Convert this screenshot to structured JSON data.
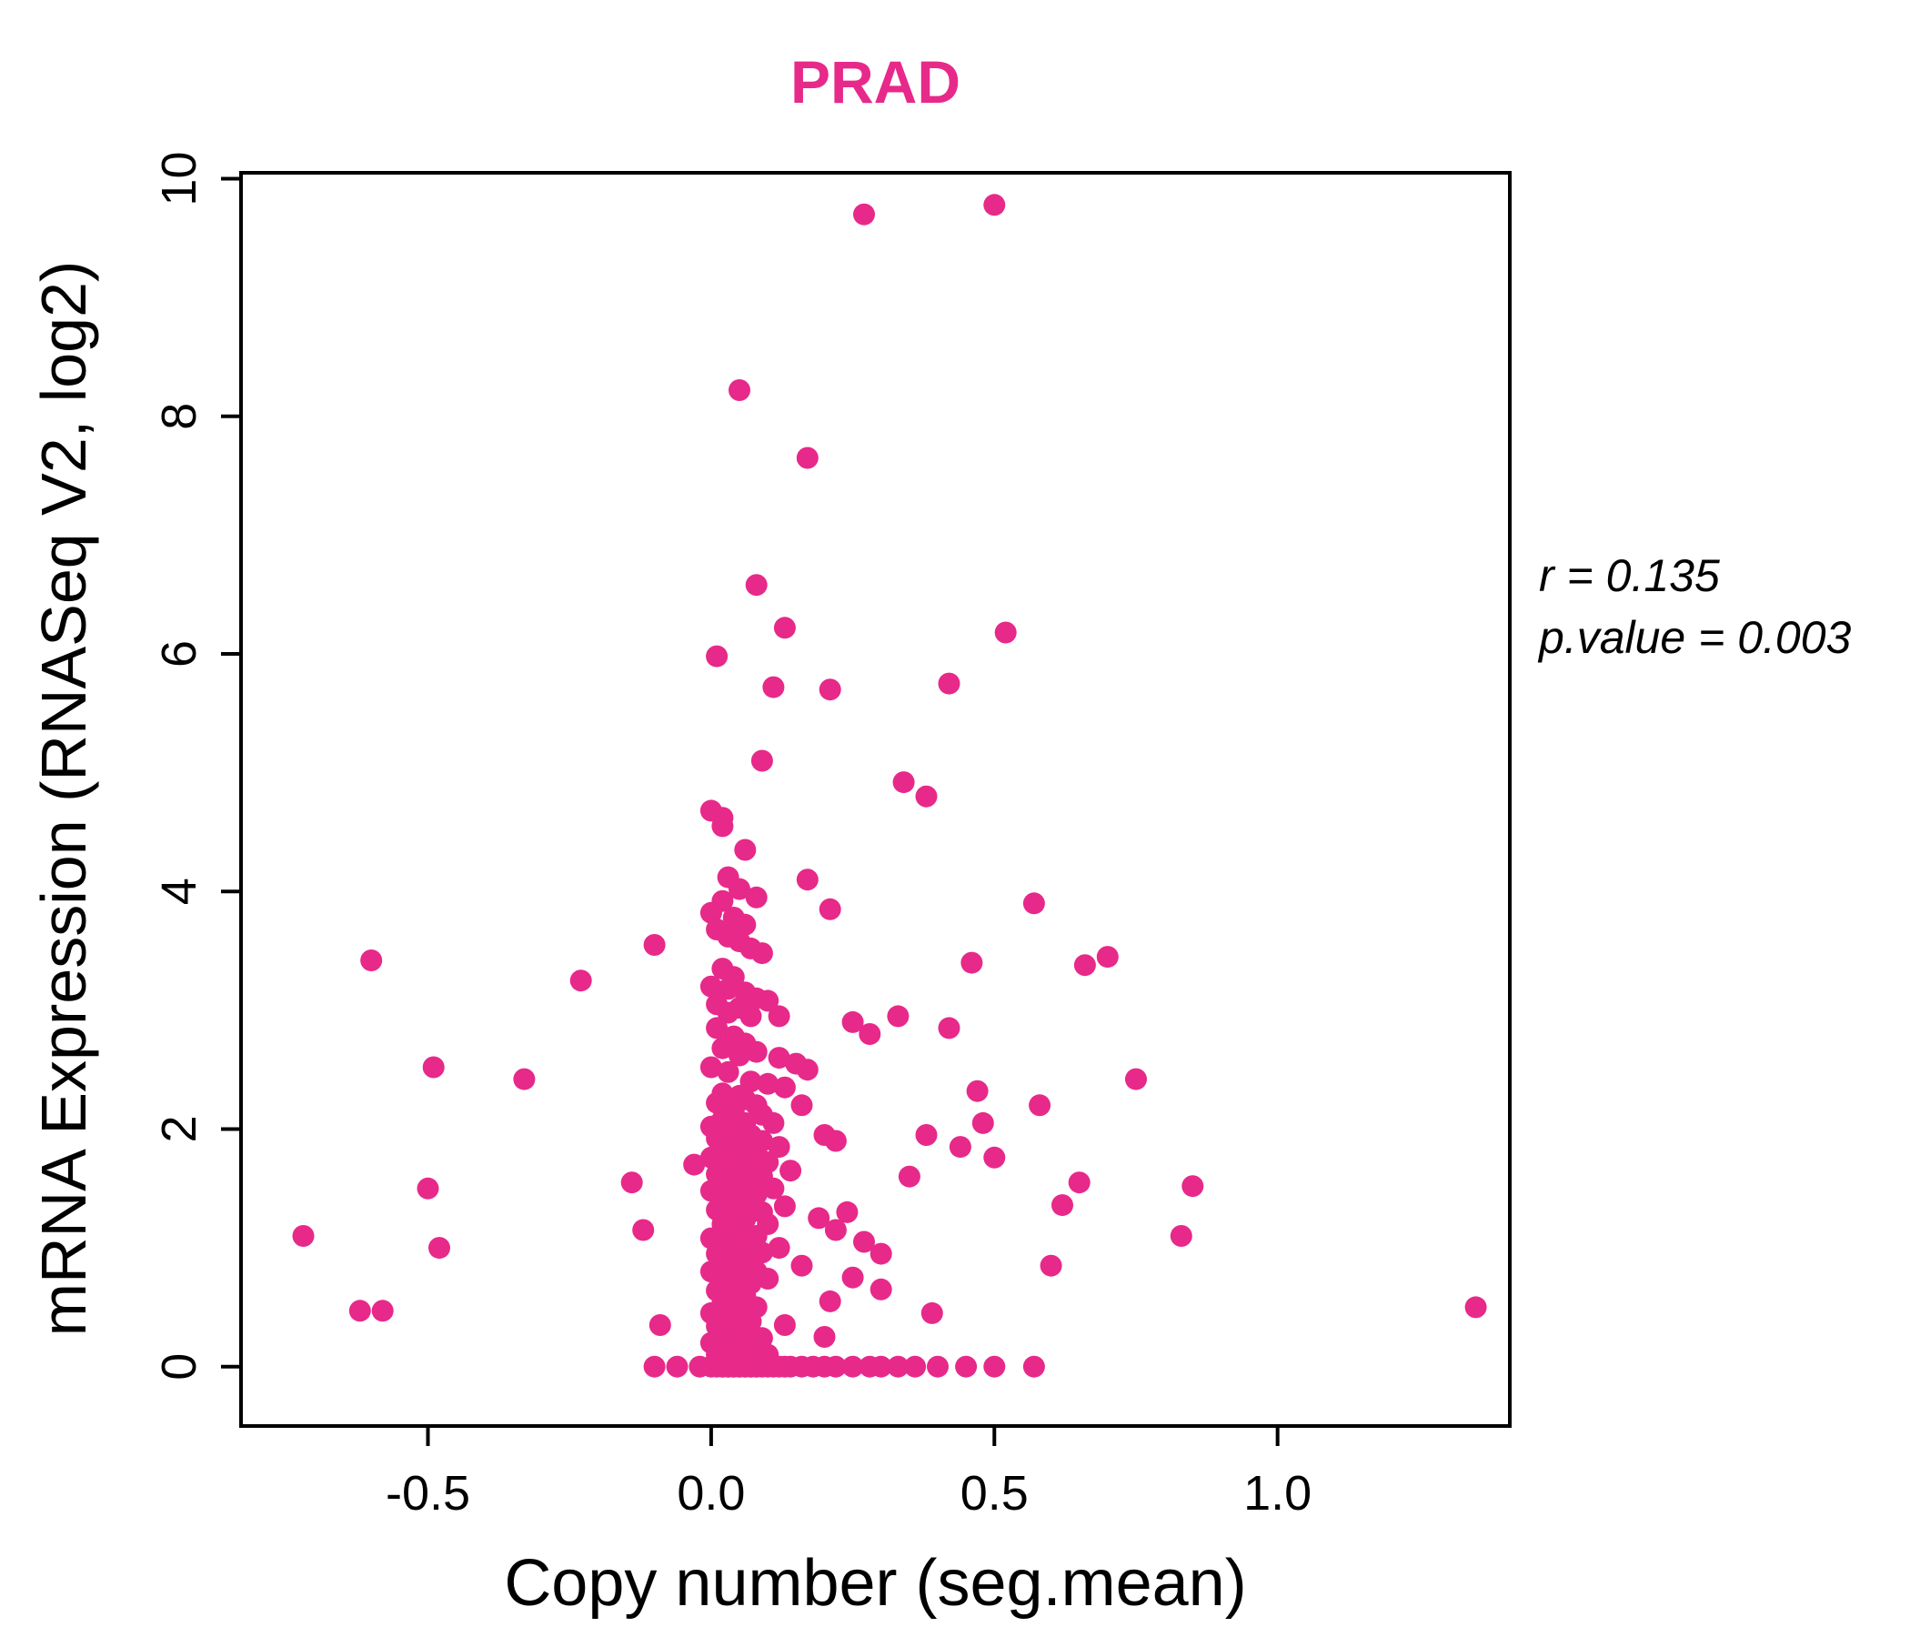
{
  "chart_data": {
    "type": "scatter",
    "title": "PRAD",
    "xlabel": "Copy number (seg.mean)",
    "ylabel": "mRNA Expression (RNASeq V2, log2)",
    "xlim": [
      -0.83,
      1.41
    ],
    "ylim": [
      -0.5,
      10.05
    ],
    "x_ticks": [
      -0.5,
      0.0,
      0.5,
      1.0
    ],
    "x_tick_labels": [
      "-0.5",
      "0.0",
      "0.5",
      "1.0"
    ],
    "y_ticks": [
      0,
      2,
      4,
      6,
      8,
      10
    ],
    "y_tick_labels": [
      "0",
      "2",
      "4",
      "6",
      "8",
      "10"
    ],
    "point_color": "#E7298A",
    "title_color": "#E7298A",
    "legend_position": "none",
    "grid": false,
    "annotation": {
      "r_text": "r = 0.135",
      "p_text": "p.value = 0.003"
    },
    "points": [
      [
        0.27,
        9.7
      ],
      [
        0.5,
        9.78
      ],
      [
        0.05,
        8.22
      ],
      [
        0.17,
        7.65
      ],
      [
        0.08,
        6.58
      ],
      [
        0.13,
        6.22
      ],
      [
        0.52,
        6.18
      ],
      [
        0.01,
        5.98
      ],
      [
        0.11,
        5.72
      ],
      [
        0.21,
        5.7
      ],
      [
        0.42,
        5.75
      ],
      [
        0.09,
        5.1
      ],
      [
        0.34,
        4.92
      ],
      [
        0.38,
        4.8
      ],
      [
        0.0,
        4.68
      ],
      [
        0.02,
        4.62
      ],
      [
        0.02,
        4.55
      ],
      [
        0.06,
        4.35
      ],
      [
        0.03,
        4.12
      ],
      [
        0.17,
        4.1
      ],
      [
        0.05,
        4.02
      ],
      [
        0.08,
        3.95
      ],
      [
        0.02,
        3.92
      ],
      [
        0.21,
        3.85
      ],
      [
        0.57,
        3.9
      ],
      [
        0.0,
        3.82
      ],
      [
        0.04,
        3.78
      ],
      [
        0.06,
        3.72
      ],
      [
        0.01,
        3.68
      ],
      [
        0.03,
        3.62
      ],
      [
        0.05,
        3.58
      ],
      [
        -0.1,
        3.55
      ],
      [
        0.07,
        3.52
      ],
      [
        0.09,
        3.48
      ],
      [
        0.7,
        3.45
      ],
      [
        0.66,
        3.38
      ],
      [
        -0.6,
        3.42
      ],
      [
        0.46,
        3.4
      ],
      [
        0.02,
        3.35
      ],
      [
        0.04,
        3.28
      ],
      [
        -0.23,
        3.25
      ],
      [
        0.0,
        3.2
      ],
      [
        0.03,
        3.18
      ],
      [
        0.06,
        3.15
      ],
      [
        0.08,
        3.1
      ],
      [
        0.1,
        3.08
      ],
      [
        0.01,
        3.05
      ],
      [
        0.05,
        3.02
      ],
      [
        0.03,
        2.98
      ],
      [
        0.07,
        2.95
      ],
      [
        0.12,
        2.95
      ],
      [
        0.25,
        2.9
      ],
      [
        0.33,
        2.95
      ],
      [
        0.01,
        2.85
      ],
      [
        0.28,
        2.8
      ],
      [
        0.42,
        2.85
      ],
      [
        0.04,
        2.78
      ],
      [
        0.06,
        2.72
      ],
      [
        0.02,
        2.68
      ],
      [
        0.08,
        2.65
      ],
      [
        0.05,
        2.62
      ],
      [
        0.12,
        2.6
      ],
      [
        0.15,
        2.55
      ],
      [
        -0.49,
        2.52
      ],
      [
        0.0,
        2.52
      ],
      [
        0.17,
        2.5
      ],
      [
        0.03,
        2.48
      ],
      [
        0.75,
        2.42
      ],
      [
        -0.33,
        2.42
      ],
      [
        0.07,
        2.4
      ],
      [
        0.1,
        2.38
      ],
      [
        0.13,
        2.35
      ],
      [
        0.47,
        2.32
      ],
      [
        0.02,
        2.3
      ],
      [
        0.05,
        2.28
      ],
      [
        0.06,
        2.25
      ],
      [
        0.01,
        2.22
      ],
      [
        0.08,
        2.2
      ],
      [
        0.16,
        2.2
      ],
      [
        0.58,
        2.2
      ],
      [
        0.04,
        2.15
      ],
      [
        0.09,
        2.12
      ],
      [
        0.02,
        2.08
      ],
      [
        0.06,
        2.05
      ],
      [
        0.11,
        2.05
      ],
      [
        0.48,
        2.05
      ],
      [
        0.0,
        2.02
      ],
      [
        0.05,
        2.0
      ],
      [
        0.03,
        1.98
      ],
      [
        0.07,
        1.95
      ],
      [
        0.38,
        1.95
      ],
      [
        0.2,
        1.95
      ],
      [
        0.01,
        1.92
      ],
      [
        0.09,
        1.9
      ],
      [
        0.22,
        1.9
      ],
      [
        0.04,
        1.88
      ],
      [
        0.06,
        1.85
      ],
      [
        0.12,
        1.85
      ],
      [
        0.44,
        1.85
      ],
      [
        0.02,
        1.82
      ],
      [
        0.08,
        1.8
      ],
      [
        0.5,
        1.76
      ],
      [
        0.0,
        1.76
      ],
      [
        0.05,
        1.74
      ],
      [
        0.1,
        1.72
      ],
      [
        -0.03,
        1.7
      ],
      [
        0.03,
        1.7
      ],
      [
        0.07,
        1.66
      ],
      [
        0.14,
        1.65
      ],
      [
        0.01,
        1.62
      ],
      [
        0.09,
        1.6
      ],
      [
        0.35,
        1.6
      ],
      [
        0.04,
        1.58
      ],
      [
        0.06,
        1.55
      ],
      [
        -0.14,
        1.55
      ],
      [
        0.85,
        1.52
      ],
      [
        0.02,
        1.52
      ],
      [
        0.11,
        1.5
      ],
      [
        0.65,
        1.55
      ],
      [
        0.0,
        1.48
      ],
      [
        0.08,
        1.45
      ],
      [
        -0.5,
        1.5
      ],
      [
        0.05,
        1.42
      ],
      [
        0.03,
        1.4
      ],
      [
        0.62,
        1.36
      ],
      [
        0.07,
        1.35
      ],
      [
        0.13,
        1.35
      ],
      [
        0.01,
        1.32
      ],
      [
        0.24,
        1.3
      ],
      [
        0.09,
        1.3
      ],
      [
        0.04,
        1.26
      ],
      [
        0.06,
        1.24
      ],
      [
        0.19,
        1.25
      ],
      [
        0.02,
        1.2
      ],
      [
        0.1,
        1.2
      ],
      [
        -0.12,
        1.15
      ],
      [
        0.22,
        1.15
      ],
      [
        0.05,
        1.14
      ],
      [
        0.08,
        1.1
      ],
      [
        -0.72,
        1.1
      ],
      [
        0.83,
        1.1
      ],
      [
        0.0,
        1.08
      ],
      [
        0.03,
        1.05
      ],
      [
        0.27,
        1.05
      ],
      [
        0.07,
        1.04
      ],
      [
        -0.48,
        1.0
      ],
      [
        0.05,
        1.0
      ],
      [
        0.12,
        1.0
      ],
      [
        0.09,
        0.96
      ],
      [
        0.01,
        0.95
      ],
      [
        0.3,
        0.95
      ],
      [
        0.06,
        0.92
      ],
      [
        0.04,
        0.9
      ],
      [
        0.6,
        0.85
      ],
      [
        0.16,
        0.85
      ],
      [
        0.02,
        0.84
      ],
      [
        0.08,
        0.8
      ],
      [
        0.0,
        0.8
      ],
      [
        0.05,
        0.76
      ],
      [
        0.25,
        0.75
      ],
      [
        0.1,
        0.74
      ],
      [
        0.03,
        0.7
      ],
      [
        0.07,
        0.7
      ],
      [
        0.3,
        0.65
      ],
      [
        0.01,
        0.64
      ],
      [
        0.06,
        0.6
      ],
      [
        0.04,
        0.58
      ],
      [
        0.21,
        0.55
      ],
      [
        0.02,
        0.54
      ],
      [
        1.35,
        0.5
      ],
      [
        0.08,
        0.5
      ],
      [
        -0.62,
        0.47
      ],
      [
        -0.58,
        0.47
      ],
      [
        0.0,
        0.45
      ],
      [
        0.05,
        0.44
      ],
      [
        0.39,
        0.45
      ],
      [
        0.03,
        0.4
      ],
      [
        0.07,
        0.38
      ],
      [
        -0.09,
        0.35
      ],
      [
        0.01,
        0.34
      ],
      [
        0.13,
        0.35
      ],
      [
        0.06,
        0.3
      ],
      [
        0.04,
        0.28
      ],
      [
        0.02,
        0.25
      ],
      [
        0.09,
        0.24
      ],
      [
        0.2,
        0.25
      ],
      [
        0.0,
        0.2
      ],
      [
        0.05,
        0.18
      ],
      [
        0.03,
        0.15
      ],
      [
        0.07,
        0.14
      ],
      [
        0.01,
        0.1
      ],
      [
        0.1,
        0.1
      ],
      [
        0.04,
        0.06
      ],
      [
        0.06,
        0.05
      ],
      [
        -0.1,
        0
      ],
      [
        -0.06,
        0
      ],
      [
        -0.02,
        0
      ],
      [
        0.0,
        0
      ],
      [
        0.01,
        0
      ],
      [
        0.02,
        0
      ],
      [
        0.02,
        0
      ],
      [
        0.03,
        0
      ],
      [
        0.03,
        0
      ],
      [
        0.04,
        0
      ],
      [
        0.04,
        0
      ],
      [
        0.05,
        0
      ],
      [
        0.05,
        0
      ],
      [
        0.06,
        0
      ],
      [
        0.06,
        0
      ],
      [
        0.07,
        0
      ],
      [
        0.07,
        0
      ],
      [
        0.08,
        0
      ],
      [
        0.08,
        0
      ],
      [
        0.09,
        0
      ],
      [
        0.1,
        0
      ],
      [
        0.11,
        0
      ],
      [
        0.12,
        0
      ],
      [
        0.13,
        0
      ],
      [
        0.14,
        0
      ],
      [
        0.16,
        0
      ],
      [
        0.18,
        0
      ],
      [
        0.2,
        0
      ],
      [
        0.22,
        0
      ],
      [
        0.25,
        0
      ],
      [
        0.28,
        0
      ],
      [
        0.3,
        0
      ],
      [
        0.33,
        0
      ],
      [
        0.36,
        0
      ],
      [
        0.4,
        0
      ],
      [
        0.45,
        0
      ],
      [
        0.5,
        0
      ],
      [
        0.57,
        0
      ]
    ]
  }
}
